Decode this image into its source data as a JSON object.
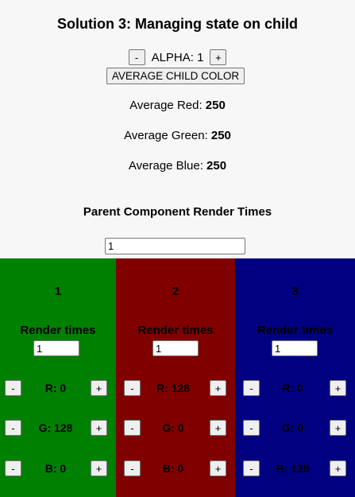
{
  "title": "Solution 3: Managing state on child",
  "alpha": {
    "minus": "-",
    "label": "ALPHA: 1",
    "plus": "+"
  },
  "average_button": "AVERAGE CHILD COLOR",
  "averages": {
    "red": {
      "label": "Average Red:",
      "value": "250"
    },
    "green": {
      "label": "Average Green:",
      "value": "250"
    },
    "blue": {
      "label": "Average Blue:",
      "value": "250"
    }
  },
  "parent": {
    "title": "Parent Component Render Times",
    "value": "1"
  },
  "children": [
    {
      "number": "1",
      "render_label": "Render times",
      "render_value": "1",
      "color": "#008000",
      "r": "R: 0",
      "g": "G: 128",
      "b": "B: 0"
    },
    {
      "number": "2",
      "render_label": "Render times",
      "render_value": "1",
      "color": "#800000",
      "r": "R: 128",
      "g": "G: 0",
      "b": "B: 0"
    },
    {
      "number": "3",
      "render_label": "Render times",
      "render_value": "1",
      "color": "#000080",
      "r": "R: 0",
      "g": "G: 0",
      "b": "B: 128"
    }
  ],
  "button_minus": "-",
  "button_plus": "+"
}
